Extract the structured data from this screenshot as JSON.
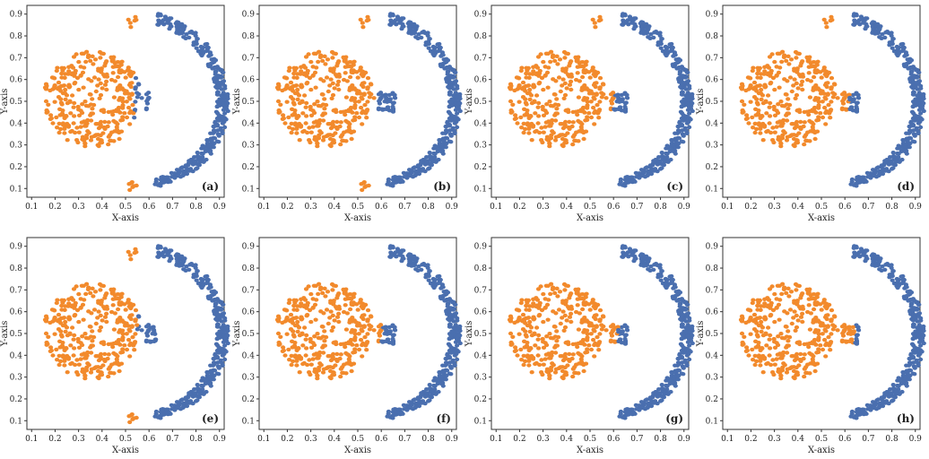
{
  "chart_data": {
    "type": "scatter",
    "xlabel": "X-axis",
    "ylabel": "Y-axis",
    "xlim": [
      0.08,
      0.92
    ],
    "ylim": [
      0.06,
      0.94
    ],
    "xticks": [
      "0.1",
      "0.2",
      "0.3",
      "0.4",
      "0.5",
      "0.6",
      "0.7",
      "0.8",
      "0.9"
    ],
    "yticks": [
      "0.1",
      "0.2",
      "0.3",
      "0.4",
      "0.5",
      "0.6",
      "0.7",
      "0.8",
      "0.9"
    ],
    "colors": {
      "cluster_1": "#F28A2C",
      "cluster_2": "#4A6FAF"
    },
    "panels": [
      {
        "label": "(a)",
        "split_x": 0.535,
        "inner_upper_cutoff": 0.6,
        "lower_tail": true,
        "upper_tail": true
      },
      {
        "label": "(b)",
        "split_x": 0.58,
        "inner_upper_cutoff": 0.66,
        "lower_tail": true,
        "upper_tail": true
      },
      {
        "label": "(c)",
        "split_x": 0.6,
        "inner_upper_cutoff": 0.68,
        "lower_tail": false,
        "upper_tail": true
      },
      {
        "label": "(d)",
        "split_x": 0.62,
        "inner_upper_cutoff": 0.7,
        "lower_tail": false,
        "upper_tail": true
      },
      {
        "label": "(e)",
        "split_x": 0.55,
        "inner_upper_cutoff": 0.63,
        "lower_tail": true,
        "upper_tail": true
      },
      {
        "label": "(f)",
        "split_x": 0.6,
        "inner_upper_cutoff": 0.68,
        "lower_tail": false,
        "upper_tail": false
      },
      {
        "label": "(g)",
        "split_x": 0.62,
        "inner_upper_cutoff": 0.7,
        "lower_tail": false,
        "upper_tail": false
      },
      {
        "label": "(h)",
        "split_x": 0.64,
        "inner_upper_cutoff": 0.72,
        "lower_tail": false,
        "upper_tail": false
      }
    ]
  }
}
